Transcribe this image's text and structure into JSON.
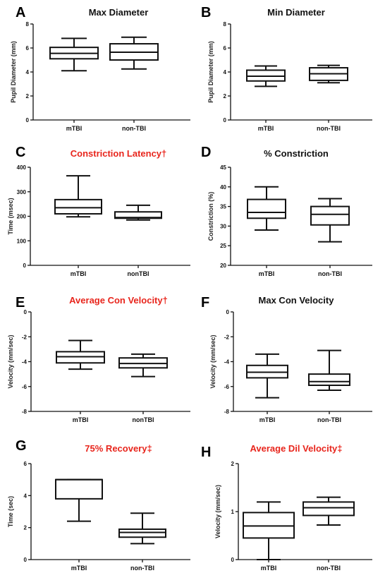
{
  "colors": {
    "plain_title": "#111111",
    "highlight_title": "#e8251c"
  },
  "chart_data": [
    {
      "panel": "A",
      "title": "Max Diameter",
      "title_highlight": false,
      "type": "box",
      "ylabel": "Pupil Diameter (mm)",
      "ylim": [
        0,
        8
      ],
      "yticks": [
        0,
        2,
        4,
        6,
        8
      ],
      "categories": [
        "mTBI",
        "non-TBI"
      ],
      "boxes": [
        {
          "min": 4.1,
          "q1": 5.1,
          "median": 5.55,
          "q3": 6.05,
          "max": 6.8
        },
        {
          "min": 4.25,
          "q1": 5.0,
          "median": 5.65,
          "q3": 6.35,
          "max": 6.9
        }
      ]
    },
    {
      "panel": "B",
      "title": "Min Diameter",
      "title_highlight": false,
      "type": "box",
      "ylabel": "Pupil Diameter (mm)",
      "ylim": [
        0,
        8
      ],
      "yticks": [
        0,
        2,
        4,
        6,
        8
      ],
      "categories": [
        "mTBI",
        "non-TBI"
      ],
      "boxes": [
        {
          "min": 2.8,
          "q1": 3.25,
          "median": 3.65,
          "q3": 4.15,
          "max": 4.5
        },
        {
          "min": 3.1,
          "q1": 3.3,
          "median": 3.85,
          "q3": 4.35,
          "max": 4.55
        }
      ]
    },
    {
      "panel": "C",
      "title": "Constriction Latency†",
      "title_highlight": true,
      "type": "box",
      "ylabel": "Time (msec)",
      "ylim": [
        0,
        400
      ],
      "yticks": [
        0,
        100,
        200,
        300,
        400
      ],
      "categories": [
        "mTBI",
        "nonTBI"
      ],
      "boxes": [
        {
          "min": 198,
          "q1": 210,
          "median": 235,
          "q3": 268,
          "max": 365
        },
        {
          "min": 185,
          "q1": 192,
          "median": 195,
          "q3": 218,
          "max": 245
        }
      ]
    },
    {
      "panel": "D",
      "title": "% Constriction",
      "title_highlight": false,
      "type": "box",
      "ylabel": "Constriction (%)",
      "ylim": [
        20,
        45
      ],
      "yticks": [
        20,
        25,
        30,
        35,
        40,
        45
      ],
      "categories": [
        "mTBI",
        "non-TBI"
      ],
      "boxes": [
        {
          "min": 29,
          "q1": 32,
          "median": 33.5,
          "q3": 36.8,
          "max": 40
        },
        {
          "min": 26,
          "q1": 30.3,
          "median": 33,
          "q3": 35,
          "max": 37
        }
      ]
    },
    {
      "panel": "E",
      "title": "Average Con Velocity†",
      "title_highlight": true,
      "type": "box",
      "ylabel": "Velocity (mm/sec)",
      "ylim": [
        -8,
        0
      ],
      "yticks": [
        -8,
        -6,
        -4,
        -2,
        0
      ],
      "categories": [
        "mTBI",
        "nonTBI"
      ],
      "boxes": [
        {
          "min": -4.6,
          "q1": -4.1,
          "median": -3.6,
          "q3": -3.2,
          "max": -2.3
        },
        {
          "min": -5.2,
          "q1": -4.5,
          "median": -4.15,
          "q3": -3.7,
          "max": -3.4
        }
      ]
    },
    {
      "panel": "F",
      "title": "Max Con Velocity",
      "title_highlight": false,
      "type": "box",
      "ylabel": "Velocity (mm/sec)",
      "ylim": [
        -8,
        0
      ],
      "yticks": [
        -8,
        -6,
        -4,
        -2,
        0
      ],
      "categories": [
        "mTBI",
        "non-TBI"
      ],
      "boxes": [
        {
          "min": -6.9,
          "q1": -5.3,
          "median": -4.85,
          "q3": -4.3,
          "max": -3.4
        },
        {
          "min": -6.3,
          "q1": -5.9,
          "median": -5.6,
          "q3": -5.0,
          "max": -3.1
        }
      ]
    },
    {
      "panel": "G",
      "title": "75% Recovery‡",
      "title_highlight": true,
      "type": "box",
      "ylabel": "Time (sec)",
      "ylim": [
        0,
        6
      ],
      "yticks": [
        0,
        2,
        4,
        6
      ],
      "categories": [
        "mTBI",
        "non-TBI"
      ],
      "boxes": [
        {
          "min": 2.4,
          "q1": 3.8,
          "median": 5.0,
          "q3": 5.0,
          "max": 5.0
        },
        {
          "min": 1.0,
          "q1": 1.4,
          "median": 1.7,
          "q3": 1.9,
          "max": 2.9
        }
      ]
    },
    {
      "panel": "H",
      "title": "Average Dil Velocity‡",
      "title_highlight": true,
      "type": "box",
      "ylabel": "Velocity (mm/sec)",
      "ylim": [
        0,
        2
      ],
      "yticks": [
        0,
        1,
        2
      ],
      "categories": [
        "mTBI",
        "non-TBI"
      ],
      "boxes": [
        {
          "min": 0.0,
          "q1": 0.45,
          "median": 0.7,
          "q3": 0.98,
          "max": 1.2
        },
        {
          "min": 0.72,
          "q1": 0.92,
          "median": 1.08,
          "q3": 1.2,
          "max": 1.3
        }
      ]
    }
  ]
}
